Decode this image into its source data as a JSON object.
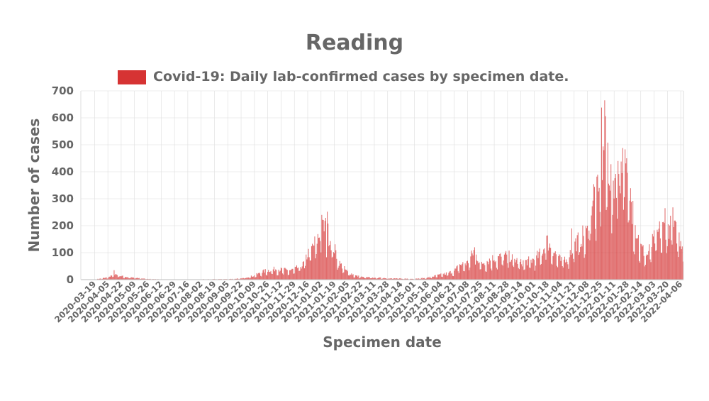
{
  "chart_data": {
    "type": "bar",
    "title": "Reading",
    "xlabel": "Specimen date",
    "ylabel": "Number of cases",
    "ylim": [
      0,
      700
    ],
    "yticks": [
      "0",
      "100",
      "200",
      "300",
      "400",
      "500",
      "600",
      "700"
    ],
    "grid": true,
    "legend_position": "top",
    "bar_color": "#d63333",
    "series": [
      {
        "name": "Covid-19: Daily lab-confirmed cases by specimen date.",
        "start_date": "2020-03-02",
        "end_date": "2022-04-09",
        "anchors": [
          [
            "2020-03-02",
            0
          ],
          [
            "2020-03-19",
            1
          ],
          [
            "2020-03-28",
            4
          ],
          [
            "2020-04-05",
            9
          ],
          [
            "2020-04-15",
            20
          ],
          [
            "2020-04-22",
            13
          ],
          [
            "2020-05-01",
            9
          ],
          [
            "2020-05-15",
            5
          ],
          [
            "2020-05-30",
            2
          ],
          [
            "2020-06-12",
            1
          ],
          [
            "2020-07-16",
            1
          ],
          [
            "2020-09-05",
            2
          ],
          [
            "2020-09-22",
            4
          ],
          [
            "2020-10-09",
            15
          ],
          [
            "2020-10-20",
            30
          ],
          [
            "2020-11-05",
            40
          ],
          [
            "2020-11-22",
            34
          ],
          [
            "2020-11-29",
            38
          ],
          [
            "2020-12-10",
            55
          ],
          [
            "2020-12-16",
            95
          ],
          [
            "2020-12-22",
            120
          ],
          [
            "2021-01-01",
            170
          ],
          [
            "2021-01-07",
            200
          ],
          [
            "2021-01-12",
            165
          ],
          [
            "2021-01-19",
            115
          ],
          [
            "2021-01-26",
            60
          ],
          [
            "2021-02-05",
            28
          ],
          [
            "2021-02-15",
            15
          ],
          [
            "2021-02-25",
            9
          ],
          [
            "2021-03-11",
            7
          ],
          [
            "2021-04-14",
            4
          ],
          [
            "2021-05-01",
            3
          ],
          [
            "2021-05-18",
            7
          ],
          [
            "2021-05-28",
            14
          ],
          [
            "2021-06-10",
            22
          ],
          [
            "2021-06-21",
            32
          ],
          [
            "2021-06-28",
            55
          ],
          [
            "2021-07-08",
            62
          ],
          [
            "2021-07-16",
            105
          ],
          [
            "2021-07-25",
            60
          ],
          [
            "2021-08-11",
            80
          ],
          [
            "2021-08-28",
            90
          ],
          [
            "2021-09-14",
            62
          ],
          [
            "2021-10-01",
            75
          ],
          [
            "2021-10-10",
            100
          ],
          [
            "2021-10-18",
            140
          ],
          [
            "2021-10-25",
            110
          ],
          [
            "2021-11-04",
            70
          ],
          [
            "2021-11-14",
            90
          ],
          [
            "2021-11-21",
            130
          ],
          [
            "2021-12-01",
            160
          ],
          [
            "2021-12-08",
            175
          ],
          [
            "2021-12-13",
            300
          ],
          [
            "2021-12-18",
            320
          ],
          [
            "2021-12-25",
            300
          ],
          [
            "2021-12-29",
            500
          ],
          [
            "2022-01-03",
            470
          ],
          [
            "2022-01-08",
            340
          ],
          [
            "2022-01-14",
            400
          ],
          [
            "2022-01-20",
            410
          ],
          [
            "2022-01-25",
            400
          ],
          [
            "2022-01-31",
            330
          ],
          [
            "2022-02-07",
            200
          ],
          [
            "2022-02-14",
            120
          ],
          [
            "2022-02-22",
            90
          ],
          [
            "2022-03-03",
            150
          ],
          [
            "2022-03-10",
            180
          ],
          [
            "2022-03-20",
            200
          ],
          [
            "2022-03-28",
            190
          ],
          [
            "2022-04-06",
            150
          ],
          [
            "2022-04-09",
            130
          ]
        ],
        "spikes": [
          [
            "2020-04-13",
            35
          ],
          [
            "2021-01-03",
            240
          ],
          [
            "2021-01-10",
            252
          ],
          [
            "2021-07-17",
            120
          ],
          [
            "2021-10-17",
            163
          ],
          [
            "2021-11-18",
            190
          ],
          [
            "2021-12-26",
            638
          ],
          [
            "2021-12-30",
            665
          ],
          [
            "2022-01-16",
            440
          ],
          [
            "2022-01-22",
            488
          ],
          [
            "2022-02-04",
            292
          ],
          [
            "2022-03-17",
            265
          ],
          [
            "2022-03-27",
            268
          ]
        ]
      }
    ],
    "xticks": [
      "2020-03-19",
      "2020-04-05",
      "2020-04-22",
      "2020-05-09",
      "2020-05-26",
      "2020-06-12",
      "2020-06-29",
      "2020-07-16",
      "2020-08-02",
      "2020-08-19",
      "2020-09-05",
      "2020-09-22",
      "2020-10-09",
      "2020-10-26",
      "2020-11-12",
      "2020-11-29",
      "2020-12-16",
      "2021-01-02",
      "2021-01-19",
      "2021-02-05",
      "2021-02-22",
      "2021-03-11",
      "2021-03-28",
      "2021-04-14",
      "2021-05-01",
      "2021-05-18",
      "2021-06-04",
      "2021-06-21",
      "2021-07-08",
      "2021-07-25",
      "2021-08-11",
      "2021-08-28",
      "2021-09-14",
      "2021-10-01",
      "2021-10-18",
      "2021-11-04",
      "2021-11-21",
      "2021-12-08",
      "2021-12-25",
      "2022-01-11",
      "2022-01-28",
      "2022-02-14",
      "2022-03-03",
      "2022-03-20",
      "2022-04-06"
    ]
  }
}
